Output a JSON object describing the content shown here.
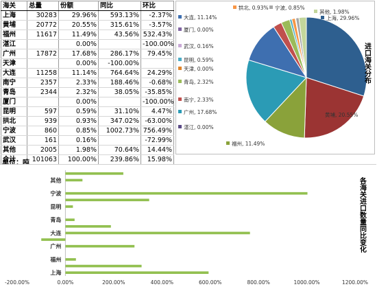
{
  "table": {
    "headers": [
      "海关",
      "总量",
      "份额",
      "同比",
      "环比"
    ],
    "rows": [
      [
        "上海",
        "30283",
        "29.96%",
        "593.13%",
        "-2.37%"
      ],
      [
        "黄埔",
        "20772",
        "20.55%",
        "315.61%",
        "-3.57%"
      ],
      [
        "福州",
        "11617",
        "11.49%",
        "43.56%",
        "532.43%"
      ],
      [
        "湛江",
        "",
        "0.00%",
        "",
        "-100.00%"
      ],
      [
        "广州",
        "17872",
        "17.68%",
        "286.17%",
        "79.45%"
      ],
      [
        "天津",
        "",
        "0.00%",
        "-100.00%",
        ""
      ],
      [
        "大连",
        "11258",
        "11.14%",
        "764.64%",
        "24.29%"
      ],
      [
        "南宁",
        "2357",
        "2.33%",
        "188.46%",
        "-0.68%"
      ],
      [
        "青岛",
        "2344",
        "2.32%",
        "38.05%",
        "-35.85%"
      ],
      [
        "厦门",
        "",
        "0.00%",
        "",
        "-100.00%"
      ],
      [
        "昆明",
        "597",
        "0.59%",
        "31.10%",
        "4.47%"
      ],
      [
        "拱北",
        "939",
        "0.93%",
        "347.02%",
        "-63.00%"
      ],
      [
        "宁波",
        "860",
        "0.85%",
        "1002.73%",
        "756.49%"
      ],
      [
        "武汉",
        "161",
        "0.16%",
        "",
        "-72.99%"
      ],
      [
        "其他",
        "2005",
        "1.98%",
        "70.64%",
        "14.44%"
      ],
      [
        "合计",
        "101063",
        "100.00%",
        "239.86%",
        "15.98%"
      ]
    ],
    "unit": "单位：吨"
  },
  "chart_data": [
    {
      "type": "pie",
      "title": "进口海关分布",
      "legend_position": "left",
      "slices": [
        {
          "label": "上海",
          "value": 29.96,
          "display": "上海, 29.96%",
          "color": "#2e5f8f"
        },
        {
          "label": "黄埔",
          "value": 20.55,
          "display": "黄埔, 20.55%",
          "color": "#9b3433"
        },
        {
          "label": "福州",
          "value": 11.49,
          "display": "福州, 11.49%",
          "color": "#8aa23a"
        },
        {
          "label": "湛江",
          "value": 0.0,
          "display": "湛江, 0.00%",
          "color": "#5a4a86"
        },
        {
          "label": "广州",
          "value": 17.68,
          "display": "广州, 17.68%",
          "color": "#2b9bb5"
        },
        {
          "label": "天津",
          "value": 0.0,
          "display": "天津, 0.00%",
          "color": "#e0842a"
        },
        {
          "label": "大连",
          "value": 11.14,
          "display": "大连, 11.14%",
          "color": "#3e6fb0"
        },
        {
          "label": "南宁",
          "value": 2.33,
          "display": "南宁, 2.33%",
          "color": "#c0504d"
        },
        {
          "label": "青岛",
          "value": 2.32,
          "display": "青岛, 2.32%",
          "color": "#9bbb59"
        },
        {
          "label": "厦门",
          "value": 0.0,
          "display": "厦门, 0.00%",
          "color": "#8064a2"
        },
        {
          "label": "昆明",
          "value": 0.59,
          "display": "昆明, 0.59%",
          "color": "#4bacc6"
        },
        {
          "label": "拱北",
          "value": 0.93,
          "display": "拱北, 0.93%",
          "color": "#f79646"
        },
        {
          "label": "武汉",
          "value": 0.16,
          "display": "武汉, 0.16%",
          "color": "#c9a9d6"
        },
        {
          "label": "宁波",
          "value": 0.85,
          "display": "宁波, 0.85%",
          "color": "#a6a6a6"
        },
        {
          "label": "其他",
          "value": 1.98,
          "display": "其他, 1.98%",
          "color": "#c3d69b"
        }
      ],
      "pie_draw_order": [
        "上海",
        "黄埔",
        "福州",
        "湛江",
        "广州",
        "天津",
        "大连",
        "南宁",
        "青岛",
        "厦门",
        "昆明",
        "拱北",
        "武汉",
        "宁波",
        "其他"
      ]
    },
    {
      "type": "bar",
      "orientation": "horizontal",
      "title": "各海关进口数量同比变化",
      "color": "#92c050",
      "xlim": [
        -200,
        1200
      ],
      "xticks": [
        -200,
        0,
        200,
        400,
        600,
        800,
        1000,
        1200
      ],
      "xtick_labels": [
        "-200.00%",
        "0.00%",
        "200.00%",
        "400.00%",
        "600.00%",
        "800.00%",
        "1000.00%",
        "1200.00%"
      ],
      "categories_bottom_to_top": [
        "上海",
        "黄埔",
        "福州",
        "湛江",
        "广州",
        "天津",
        "大连",
        "南宁",
        "青岛",
        "厦门",
        "昆明",
        "拱北",
        "宁波",
        "武汉",
        "其他"
      ],
      "shown_category_labels": [
        "上海",
        "福州",
        "广州",
        "大连",
        "青岛",
        "昆明",
        "宁波",
        "其他"
      ],
      "values_bottom_to_top": [
        593.13,
        315.61,
        43.56,
        0,
        286.17,
        -100.0,
        764.64,
        188.46,
        38.05,
        0,
        31.1,
        347.02,
        1002.73,
        0,
        70.64
      ],
      "extra_top_value": 239.86
    }
  ]
}
